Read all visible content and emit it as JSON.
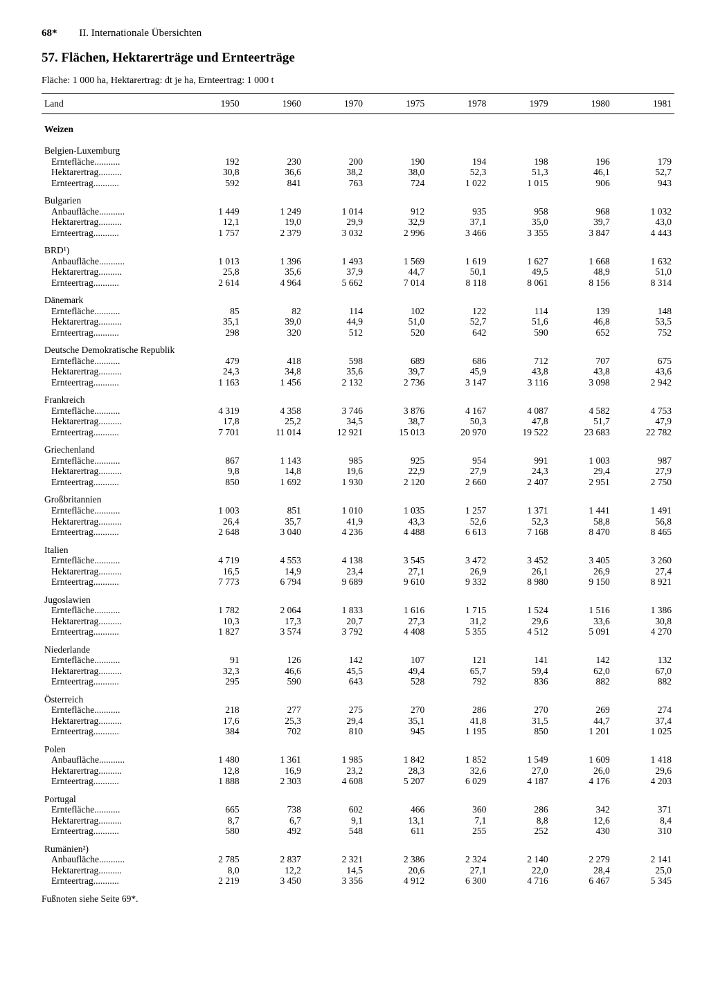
{
  "page_number": "68*",
  "chapter": "II. Internationale Übersichten",
  "title": "57. Flächen, Hektarerträge und Ernteerträge",
  "subtitle": "Fläche: 1 000 ha, Hektarertrag: dt je ha, Ernteertrag: 1 000 t",
  "columns": [
    "Land",
    "1950",
    "1960",
    "1970",
    "1975",
    "1978",
    "1979",
    "1980",
    "1981"
  ],
  "section": "Weizen",
  "footnote": "Fußnoten siehe Seite 69*.",
  "font_family": "Times New Roman",
  "text_color": "#000000",
  "background_color": "#ffffff",
  "countries": [
    {
      "name": "Belgien-Luxemburg",
      "metrics": [
        {
          "label": "Erntefläche",
          "vals": [
            "192",
            "230",
            "200",
            "190",
            "194",
            "198",
            "196",
            "179"
          ]
        },
        {
          "label": "Hektarertrag",
          "vals": [
            "30,8",
            "36,6",
            "38,2",
            "38,0",
            "52,3",
            "51,3",
            "46,1",
            "52,7"
          ]
        },
        {
          "label": "Ernteertrag",
          "vals": [
            "592",
            "841",
            "763",
            "724",
            "1 022",
            "1 015",
            "906",
            "943"
          ]
        }
      ]
    },
    {
      "name": "Bulgarien",
      "metrics": [
        {
          "label": "Anbaufläche",
          "vals": [
            "1 449",
            "1 249",
            "1 014",
            "912",
            "935",
            "958",
            "968",
            "1 032"
          ]
        },
        {
          "label": "Hektarertrag",
          "vals": [
            "12,1",
            "19,0",
            "29,9",
            "32,9",
            "37,1",
            "35,0",
            "39,7",
            "43,0"
          ]
        },
        {
          "label": "Ernteertrag",
          "vals": [
            "1 757",
            "2 379",
            "3 032",
            "2 996",
            "3 466",
            "3 355",
            "3 847",
            "4 443"
          ]
        }
      ]
    },
    {
      "name": "BRD¹)",
      "metrics": [
        {
          "label": "Anbaufläche",
          "vals": [
            "1 013",
            "1 396",
            "1 493",
            "1 569",
            "1 619",
            "1 627",
            "1 668",
            "1 632"
          ]
        },
        {
          "label": "Hektarertrag",
          "vals": [
            "25,8",
            "35,6",
            "37,9",
            "44,7",
            "50,1",
            "49,5",
            "48,9",
            "51,0"
          ]
        },
        {
          "label": "Ernteertrag",
          "vals": [
            "2 614",
            "4 964",
            "5 662",
            "7 014",
            "8 118",
            "8 061",
            "8 156",
            "8 314"
          ]
        }
      ]
    },
    {
      "name": "Dänemark",
      "metrics": [
        {
          "label": "Erntefläche",
          "vals": [
            "85",
            "82",
            "114",
            "102",
            "122",
            "114",
            "139",
            "148"
          ]
        },
        {
          "label": "Hektarertrag",
          "vals": [
            "35,1",
            "39,0",
            "44,9",
            "51,0",
            "52,7",
            "51,6",
            "46,8",
            "53,5"
          ]
        },
        {
          "label": "Ernteertrag",
          "vals": [
            "298",
            "320",
            "512",
            "520",
            "642",
            "590",
            "652",
            "752"
          ]
        }
      ]
    },
    {
      "name": "Deutsche Demokratische Republik",
      "metrics": [
        {
          "label": "Erntefläche",
          "vals": [
            "479",
            "418",
            "598",
            "689",
            "686",
            "712",
            "707",
            "675"
          ]
        },
        {
          "label": "Hektarertrag",
          "vals": [
            "24,3",
            "34,8",
            "35,6",
            "39,7",
            "45,9",
            "43,8",
            "43,8",
            "43,6"
          ]
        },
        {
          "label": "Ernteertrag",
          "vals": [
            "1 163",
            "1 456",
            "2 132",
            "2 736",
            "3 147",
            "3 116",
            "3 098",
            "2 942"
          ]
        }
      ]
    },
    {
      "name": "Frankreich",
      "metrics": [
        {
          "label": "Erntefläche",
          "vals": [
            "4 319",
            "4 358",
            "3 746",
            "3 876",
            "4 167",
            "4 087",
            "4 582",
            "4 753"
          ]
        },
        {
          "label": "Hektarertrag",
          "vals": [
            "17,8",
            "25,2",
            "34,5",
            "38,7",
            "50,3",
            "47,8",
            "51,7",
            "47,9"
          ]
        },
        {
          "label": "Ernteertrag",
          "vals": [
            "7 701",
            "11 014",
            "12 921",
            "15 013",
            "20 970",
            "19 522",
            "23 683",
            "22 782"
          ]
        }
      ]
    },
    {
      "name": "Griechenland",
      "metrics": [
        {
          "label": "Erntefläche",
          "vals": [
            "867",
            "1 143",
            "985",
            "925",
            "954",
            "991",
            "1 003",
            "987"
          ]
        },
        {
          "label": "Hektarertrag",
          "vals": [
            "9,8",
            "14,8",
            "19,6",
            "22,9",
            "27,9",
            "24,3",
            "29,4",
            "27,9"
          ]
        },
        {
          "label": "Ernteertrag",
          "vals": [
            "850",
            "1 692",
            "1 930",
            "2 120",
            "2 660",
            "2 407",
            "2 951",
            "2 750"
          ]
        }
      ]
    },
    {
      "name": "Großbritannien",
      "metrics": [
        {
          "label": "Erntefläche",
          "vals": [
            "1 003",
            "851",
            "1 010",
            "1 035",
            "1 257",
            "1 371",
            "1 441",
            "1 491"
          ]
        },
        {
          "label": "Hektarertrag",
          "vals": [
            "26,4",
            "35,7",
            "41,9",
            "43,3",
            "52,6",
            "52,3",
            "58,8",
            "56,8"
          ]
        },
        {
          "label": "Ernteertrag",
          "vals": [
            "2 648",
            "3 040",
            "4 236",
            "4 488",
            "6 613",
            "7 168",
            "8 470",
            "8 465"
          ]
        }
      ]
    },
    {
      "name": "Italien",
      "metrics": [
        {
          "label": "Erntefläche",
          "vals": [
            "4 719",
            "4 553",
            "4 138",
            "3 545",
            "3 472",
            "3 452",
            "3 405",
            "3 260"
          ]
        },
        {
          "label": "Hektarertrag",
          "vals": [
            "16,5",
            "14,9",
            "23,4",
            "27,1",
            "26,9",
            "26,1",
            "26,9",
            "27,4"
          ]
        },
        {
          "label": "Ernteertrag",
          "vals": [
            "7 773",
            "6 794",
            "9 689",
            "9 610",
            "9 332",
            "8 980",
            "9 150",
            "8 921"
          ]
        }
      ]
    },
    {
      "name": "Jugoslawien",
      "metrics": [
        {
          "label": "Erntefläche",
          "vals": [
            "1 782",
            "2 064",
            "1 833",
            "1 616",
            "1 715",
            "1 524",
            "1 516",
            "1 386"
          ]
        },
        {
          "label": "Hektarertrag",
          "vals": [
            "10,3",
            "17,3",
            "20,7",
            "27,3",
            "31,2",
            "29,6",
            "33,6",
            "30,8"
          ]
        },
        {
          "label": "Ernteertrag",
          "vals": [
            "1 827",
            "3 574",
            "3 792",
            "4 408",
            "5 355",
            "4 512",
            "5 091",
            "4 270"
          ]
        }
      ]
    },
    {
      "name": "Niederlande",
      "metrics": [
        {
          "label": "Erntefläche",
          "vals": [
            "91",
            "126",
            "142",
            "107",
            "121",
            "141",
            "142",
            "132"
          ]
        },
        {
          "label": "Hektarertrag",
          "vals": [
            "32,3",
            "46,6",
            "45,5",
            "49,4",
            "65,7",
            "59,4",
            "62,0",
            "67,0"
          ]
        },
        {
          "label": "Ernteertrag",
          "vals": [
            "295",
            "590",
            "643",
            "528",
            "792",
            "836",
            "882",
            "882"
          ]
        }
      ]
    },
    {
      "name": "Österreich",
      "metrics": [
        {
          "label": "Erntefläche",
          "vals": [
            "218",
            "277",
            "275",
            "270",
            "286",
            "270",
            "269",
            "274"
          ]
        },
        {
          "label": "Hektarertrag",
          "vals": [
            "17,6",
            "25,3",
            "29,4",
            "35,1",
            "41,8",
            "31,5",
            "44,7",
            "37,4"
          ]
        },
        {
          "label": "Ernteertrag",
          "vals": [
            "384",
            "702",
            "810",
            "945",
            "1 195",
            "850",
            "1 201",
            "1 025"
          ]
        }
      ]
    },
    {
      "name": "Polen",
      "metrics": [
        {
          "label": "Anbaufläche",
          "vals": [
            "1 480",
            "1 361",
            "1 985",
            "1 842",
            "1 852",
            "1 549",
            "1 609",
            "1 418"
          ]
        },
        {
          "label": "Hektarertrag",
          "vals": [
            "12,8",
            "16,9",
            "23,2",
            "28,3",
            "32,6",
            "27,0",
            "26,0",
            "29,6"
          ]
        },
        {
          "label": "Ernteertrag",
          "vals": [
            "1 888",
            "2 303",
            "4 608",
            "5 207",
            "6 029",
            "4 187",
            "4 176",
            "4 203"
          ]
        }
      ]
    },
    {
      "name": "Portugal",
      "metrics": [
        {
          "label": "Erntefläche",
          "vals": [
            "665",
            "738",
            "602",
            "466",
            "360",
            "286",
            "342",
            "371"
          ]
        },
        {
          "label": "Hektarertrag",
          "vals": [
            "8,7",
            "6,7",
            "9,1",
            "13,1",
            "7,1",
            "8,8",
            "12,6",
            "8,4"
          ]
        },
        {
          "label": "Ernteertrag",
          "vals": [
            "580",
            "492",
            "548",
            "611",
            "255",
            "252",
            "430",
            "310"
          ]
        }
      ]
    },
    {
      "name": "Rumänien²)",
      "metrics": [
        {
          "label": "Anbaufläche",
          "vals": [
            "2 785",
            "2 837",
            "2 321",
            "2 386",
            "2 324",
            "2 140",
            "2 279",
            "2 141"
          ]
        },
        {
          "label": "Hektarertrag",
          "vals": [
            "8,0",
            "12,2",
            "14,5",
            "20,6",
            "27,1",
            "22,0",
            "28,4",
            "25,0"
          ]
        },
        {
          "label": "Ernteertrag",
          "vals": [
            "2 219",
            "3 450",
            "3 356",
            "4 912",
            "6 300",
            "4 716",
            "6 467",
            "5 345"
          ]
        }
      ]
    }
  ]
}
